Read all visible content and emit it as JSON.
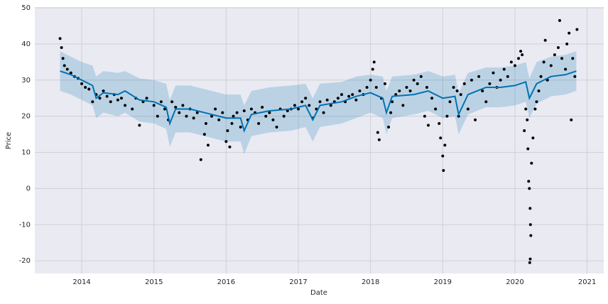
{
  "chart_data": {
    "type": "forecast",
    "xlabel": "Date",
    "ylabel": "Price",
    "xlim": [
      2013.35,
      2021.23
    ],
    "ylim": [
      -23.5,
      50.2
    ],
    "xticks": [
      2014,
      2015,
      2016,
      2017,
      2018,
      2019,
      2020,
      2021
    ],
    "yticks": [
      -20,
      -10,
      0,
      10,
      20,
      30,
      40,
      50
    ],
    "grid": true,
    "points": {
      "color": "#000000",
      "x": [
        2013.7,
        2013.72,
        2013.74,
        2013.76,
        2013.8,
        2013.85,
        2013.9,
        2013.95,
        2014.0,
        2014.05,
        2014.1,
        2014.15,
        2014.2,
        2014.25,
        2014.3,
        2014.35,
        2014.4,
        2014.45,
        2014.5,
        2014.55,
        2014.6,
        2014.7,
        2014.75,
        2014.8,
        2014.85,
        2014.9,
        2015.0,
        2015.05,
        2015.1,
        2015.15,
        2015.2,
        2015.25,
        2015.3,
        2015.35,
        2015.4,
        2015.45,
        2015.5,
        2015.55,
        2015.6,
        2015.65,
        2015.7,
        2015.72,
        2015.75,
        2015.8,
        2015.85,
        2015.9,
        2015.95,
        2016.0,
        2016.02,
        2016.05,
        2016.08,
        2016.1,
        2016.15,
        2016.2,
        2016.25,
        2016.3,
        2016.35,
        2016.4,
        2016.45,
        2016.5,
        2016.55,
        2016.6,
        2016.65,
        2016.7,
        2016.75,
        2016.8,
        2016.85,
        2016.9,
        2016.95,
        2017.0,
        2017.05,
        2017.1,
        2017.15,
        2017.2,
        2017.25,
        2017.3,
        2017.35,
        2017.4,
        2017.45,
        2017.5,
        2017.55,
        2017.6,
        2017.65,
        2017.7,
        2017.75,
        2017.8,
        2017.85,
        2017.9,
        2017.95,
        2018.0,
        2018.03,
        2018.05,
        2018.08,
        2018.1,
        2018.12,
        2018.15,
        2018.2,
        2018.25,
        2018.28,
        2018.3,
        2018.35,
        2018.4,
        2018.45,
        2018.5,
        2018.55,
        2018.6,
        2018.65,
        2018.7,
        2018.75,
        2018.78,
        2018.8,
        2018.85,
        2018.9,
        2018.95,
        2018.97,
        2019.0,
        2019.01,
        2019.03,
        2019.06,
        2019.1,
        2019.15,
        2019.2,
        2019.22,
        2019.25,
        2019.3,
        2019.35,
        2019.4,
        2019.45,
        2019.5,
        2019.55,
        2019.6,
        2019.65,
        2019.7,
        2019.75,
        2019.8,
        2019.85,
        2019.9,
        2019.95,
        2020.0,
        2020.05,
        2020.08,
        2020.1,
        2020.13,
        2020.15,
        2020.17,
        2020.18,
        2020.19,
        2020.2,
        2020.21,
        2020.215,
        2020.22,
        2020.205,
        2020.212,
        2020.23,
        2020.25,
        2020.28,
        2020.3,
        2020.33,
        2020.36,
        2020.4,
        2020.42,
        2020.45,
        2020.5,
        2020.55,
        2020.6,
        2020.62,
        2020.65,
        2020.7,
        2020.72,
        2020.75,
        2020.78,
        2020.8,
        2020.83,
        2020.86
      ],
      "y": [
        41.5,
        39,
        36,
        34,
        33,
        32,
        31,
        30.5,
        29,
        28,
        27.5,
        24,
        26,
        25,
        27,
        25.5,
        24,
        26,
        24.5,
        25,
        23,
        22,
        25,
        17.5,
        24,
        25,
        23,
        20,
        24,
        22,
        19,
        24,
        22.5,
        21,
        23,
        20,
        22,
        19.5,
        21,
        8,
        15,
        18,
        12,
        20,
        22,
        19,
        21,
        13,
        16,
        11.5,
        18,
        20,
        21,
        17,
        21.5,
        19,
        22,
        21,
        18,
        22.5,
        20,
        21,
        19,
        17,
        22,
        20,
        21.5,
        22,
        23,
        22,
        24,
        25,
        23,
        19.5,
        22,
        24,
        21,
        24.5,
        23,
        24,
        25,
        26,
        24,
        25.5,
        26,
        24.5,
        27,
        26,
        28,
        30,
        33,
        35,
        28,
        15.5,
        13.5,
        25,
        29,
        17,
        21,
        24,
        26,
        27,
        23,
        28,
        27,
        30,
        29,
        31,
        20,
        28,
        17.5,
        25,
        22,
        18,
        14,
        9,
        5,
        12,
        20,
        24,
        28,
        27,
        20,
        26,
        29,
        22,
        30,
        19,
        31,
        27,
        24,
        29,
        32,
        28,
        30,
        33,
        31,
        35,
        34,
        36,
        38,
        37,
        16,
        22,
        19,
        11,
        2,
        0,
        -5.5,
        -10,
        -13,
        -20.5,
        -19.5,
        7,
        14,
        22,
        24,
        27,
        31,
        35,
        41,
        30,
        34,
        37,
        39,
        46.5,
        36,
        33,
        40,
        43,
        19,
        36,
        31,
        44
      ]
    },
    "forecast": {
      "color": "#0072b2",
      "x": [
        2013.7,
        2013.85,
        2014.0,
        2014.15,
        2014.2,
        2014.3,
        2014.5,
        2014.6,
        2014.8,
        2015.0,
        2015.17,
        2015.22,
        2015.3,
        2015.5,
        2015.7,
        2016.0,
        2016.2,
        2016.25,
        2016.35,
        2016.6,
        2016.9,
        2017.1,
        2017.2,
        2017.3,
        2017.6,
        2017.8,
        2018.0,
        2018.17,
        2018.22,
        2018.3,
        2018.6,
        2018.8,
        2019.0,
        2019.17,
        2019.22,
        2019.35,
        2019.6,
        2019.8,
        2020.0,
        2020.15,
        2020.2,
        2020.3,
        2020.5,
        2020.7,
        2020.85
      ],
      "values": [
        32.5,
        31.5,
        30,
        28.5,
        25,
        26.5,
        26,
        27,
        24.5,
        24,
        22.5,
        18,
        22,
        22,
        21,
        19.5,
        19.5,
        16,
        20.5,
        21.5,
        22,
        23,
        19,
        23,
        24,
        25.5,
        26.5,
        25,
        21,
        25.5,
        26,
        27,
        25,
        25.5,
        20.5,
        26,
        28,
        28,
        28.5,
        29.5,
        25,
        29,
        31,
        31.5,
        32.5
      ],
      "upper": [
        38,
        36.5,
        35,
        34,
        31,
        32.5,
        32,
        32.5,
        30.5,
        30,
        29,
        24.5,
        28.5,
        28.5,
        27.5,
        26,
        26,
        23,
        27,
        28,
        28.5,
        29,
        25,
        29,
        29.5,
        31,
        31.5,
        31,
        27,
        31,
        31.5,
        32.5,
        31,
        31.5,
        26.5,
        32,
        33.5,
        33.5,
        34,
        35,
        30.5,
        35,
        36.5,
        37,
        38
      ],
      "lower": [
        27,
        26,
        24.5,
        23,
        19.5,
        21,
        20,
        21,
        18.5,
        18,
        16.5,
        11.5,
        15.5,
        15.5,
        14.5,
        13,
        13,
        9.5,
        14.5,
        15.5,
        16,
        17,
        13,
        17,
        18,
        19.5,
        21,
        19.5,
        15,
        19.5,
        20.5,
        21.5,
        19.5,
        20,
        15,
        20.5,
        22.5,
        22.5,
        23,
        24,
        19.5,
        23.5,
        25.5,
        26,
        27
      ]
    }
  }
}
